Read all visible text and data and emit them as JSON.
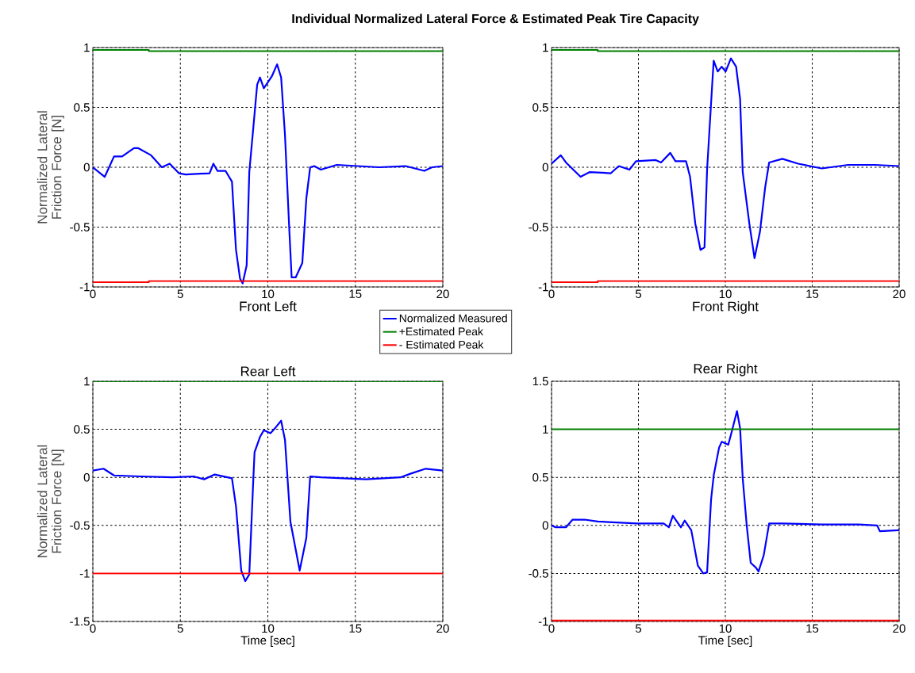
{
  "chart_data": [
    {
      "type": "line",
      "title": "Individual Normalized Lateral Force & Estimated Peak Tire Capacity",
      "xlabel": "Front Left",
      "ylabel": "Normalized Lateral Friction Force  [N]",
      "xlim": [
        0,
        20
      ],
      "ylim": [
        -1,
        1
      ],
      "xticks": [
        0,
        5,
        10,
        15,
        20
      ],
      "yticks": [
        -1,
        -0.5,
        0,
        0.5,
        1
      ],
      "grid": true,
      "legend": "bottom right",
      "series": [
        {
          "name": "Normalized Measured",
          "color": "#0000ff",
          "x": [
            0,
            0.68,
            1.21,
            1.67,
            2.35,
            2.58,
            3.33,
            3.94,
            4.39,
            4.92,
            5.3,
            6.67,
            6.89,
            7.12,
            7.58,
            7.95,
            8.18,
            8.41,
            8.56,
            8.79,
            8.94,
            9.17,
            9.39,
            9.55,
            9.77,
            10,
            10.23,
            10.53,
            10.76,
            10.98,
            11.21,
            11.36,
            11.59,
            11.97,
            12.2,
            12.42,
            12.65,
            13.03,
            13.94,
            16.36,
            17.88,
            18.94,
            19.39,
            20
          ],
          "values": [
            0,
            -0.08,
            0.09,
            0.09,
            0.16,
            0.16,
            0.1,
            0,
            0.03,
            -0.05,
            -0.06,
            -0.05,
            0.03,
            -0.03,
            -0.03,
            -0.12,
            -0.69,
            -0.93,
            -0.97,
            -0.82,
            -0.04,
            0.33,
            0.69,
            0.75,
            0.66,
            0.71,
            0.76,
            0.86,
            0.75,
            0.27,
            -0.47,
            -0.92,
            -0.92,
            -0.8,
            -0.26,
            0,
            0.01,
            -0.02,
            0.02,
            0,
            0.01,
            -0.03,
            0,
            0.01
          ]
        },
        {
          "name": "+Estimated Peak",
          "color": "#008000",
          "x": [
            0,
            3.2,
            3.2,
            20
          ],
          "values": [
            0.98,
            0.98,
            0.97,
            0.97
          ]
        },
        {
          "name": "- Estimated Peak",
          "color": "#ff0000",
          "x": [
            0,
            3.2,
            3.2,
            20
          ],
          "values": [
            -0.96,
            -0.96,
            -0.95,
            -0.95
          ]
        }
      ]
    },
    {
      "type": "line",
      "xlabel": "Front Right",
      "xlim": [
        0,
        20
      ],
      "ylim": [
        -1,
        1
      ],
      "xticks": [
        0,
        5,
        10,
        15,
        20
      ],
      "yticks": [
        -1,
        -0.5,
        0,
        0.5,
        1
      ],
      "grid": true,
      "series": [
        {
          "color": "#0000ff",
          "x": [
            0,
            0.53,
            0.83,
            1.67,
            2.2,
            3.41,
            3.87,
            4.48,
            4.86,
            6,
            6.3,
            6.83,
            7.13,
            7.74,
            7.97,
            8.27,
            8.57,
            8.8,
            8.95,
            9.26,
            9.33,
            9.56,
            9.79,
            10.02,
            10.32,
            10.62,
            10.85,
            11,
            11.38,
            11.68,
            11.99,
            12.29,
            12.52,
            13.28,
            14.19,
            15.55,
            17.07,
            18.6,
            20
          ],
          "values": [
            0.03,
            0.1,
            0.04,
            -0.08,
            -0.04,
            -0.05,
            0.01,
            -0.02,
            0.05,
            0.06,
            0.04,
            0.12,
            0.05,
            0.05,
            -0.08,
            -0.47,
            -0.69,
            -0.67,
            -0.02,
            0.73,
            0.89,
            0.8,
            0.84,
            0.8,
            0.91,
            0.84,
            0.57,
            -0.04,
            -0.47,
            -0.76,
            -0.54,
            -0.17,
            0.04,
            0.07,
            0.03,
            -0.01,
            0.02,
            0.02,
            0.01
          ]
        },
        {
          "color": "#008000",
          "x": [
            0,
            2.66,
            2.66,
            20
          ],
          "values": [
            0.98,
            0.98,
            0.97,
            0.97
          ]
        },
        {
          "color": "#ff0000",
          "x": [
            0,
            2.66,
            2.66,
            20
          ],
          "values": [
            -0.96,
            -0.96,
            -0.95,
            -0.95
          ]
        }
      ]
    },
    {
      "type": "line",
      "title": "Rear Left",
      "xlabel": "Time [sec]",
      "ylabel": "Normalized Lateral Friction Force  [N]",
      "xlim": [
        0,
        20
      ],
      "ylim": [
        -1.5,
        1
      ],
      "xticks": [
        0,
        5,
        10,
        15,
        20
      ],
      "yticks": [
        -1.5,
        -1,
        -0.5,
        0,
        0.5,
        1
      ],
      "grid": true,
      "series": [
        {
          "color": "#0000ff",
          "x": [
            0,
            0.61,
            1.21,
            2.73,
            4.55,
            5.76,
            6.36,
            6.97,
            7.95,
            8.18,
            8.48,
            8.71,
            8.94,
            9.17,
            9.24,
            9.55,
            9.77,
            10.15,
            10.45,
            10.76,
            10.98,
            11.29,
            11.82,
            12.2,
            12.42,
            13.03,
            15.61,
            17.58,
            18.18,
            19.02,
            20
          ],
          "values": [
            0.07,
            0.09,
            0.02,
            0.01,
            0,
            0.01,
            -0.02,
            0.03,
            -0.01,
            -0.3,
            -0.97,
            -1.08,
            -1.01,
            -0.02,
            0.26,
            0.42,
            0.49,
            0.46,
            0.52,
            0.59,
            0.39,
            -0.46,
            -0.97,
            -0.63,
            0.01,
            0,
            -0.02,
            0,
            0.04,
            0.09,
            0.07
          ]
        },
        {
          "color": "#008000",
          "x": [
            0,
            20
          ],
          "values": [
            1,
            1
          ]
        },
        {
          "color": "#ff0000",
          "x": [
            0,
            20
          ],
          "values": [
            -1,
            -1
          ]
        }
      ]
    },
    {
      "type": "line",
      "title": "Rear Right",
      "xlabel": "Time [sec]",
      "xlim": [
        0,
        20
      ],
      "ylim": [
        -1,
        1.5
      ],
      "xticks": [
        0,
        5,
        10,
        15,
        20
      ],
      "yticks": [
        -1,
        -0.5,
        0,
        0.5,
        1,
        1.5
      ],
      "grid": true,
      "series": [
        {
          "color": "#0000ff",
          "x": [
            0,
            0.23,
            0.83,
            1.21,
            1.9,
            2.66,
            4.93,
            6.45,
            6.75,
            6.98,
            7.44,
            7.66,
            8.04,
            8.42,
            8.73,
            8.95,
            9.18,
            9.33,
            9.64,
            9.79,
            10.17,
            10.39,
            10.67,
            10.85,
            11,
            11.23,
            11.46,
            11.76,
            11.91,
            12.21,
            12.52,
            13.28,
            15.55,
            17.68,
            18.73,
            18.89,
            20
          ],
          "values": [
            0,
            -0.02,
            -0.02,
            0.06,
            0.06,
            0.04,
            0.02,
            0.02,
            -0.02,
            0.1,
            -0.02,
            0.05,
            -0.05,
            -0.42,
            -0.5,
            -0.49,
            0.27,
            0.52,
            0.81,
            0.87,
            0.84,
            0.99,
            1.19,
            1.01,
            0.49,
            0,
            -0.39,
            -0.44,
            -0.48,
            -0.31,
            0.02,
            0.02,
            0.01,
            0.01,
            0,
            -0.06,
            -0.05
          ]
        },
        {
          "color": "#008000",
          "x": [
            0,
            20
          ],
          "values": [
            1,
            1
          ]
        },
        {
          "color": "#ff0000",
          "x": [
            0,
            20
          ],
          "values": [
            -0.99,
            -0.99
          ]
        }
      ]
    }
  ]
}
